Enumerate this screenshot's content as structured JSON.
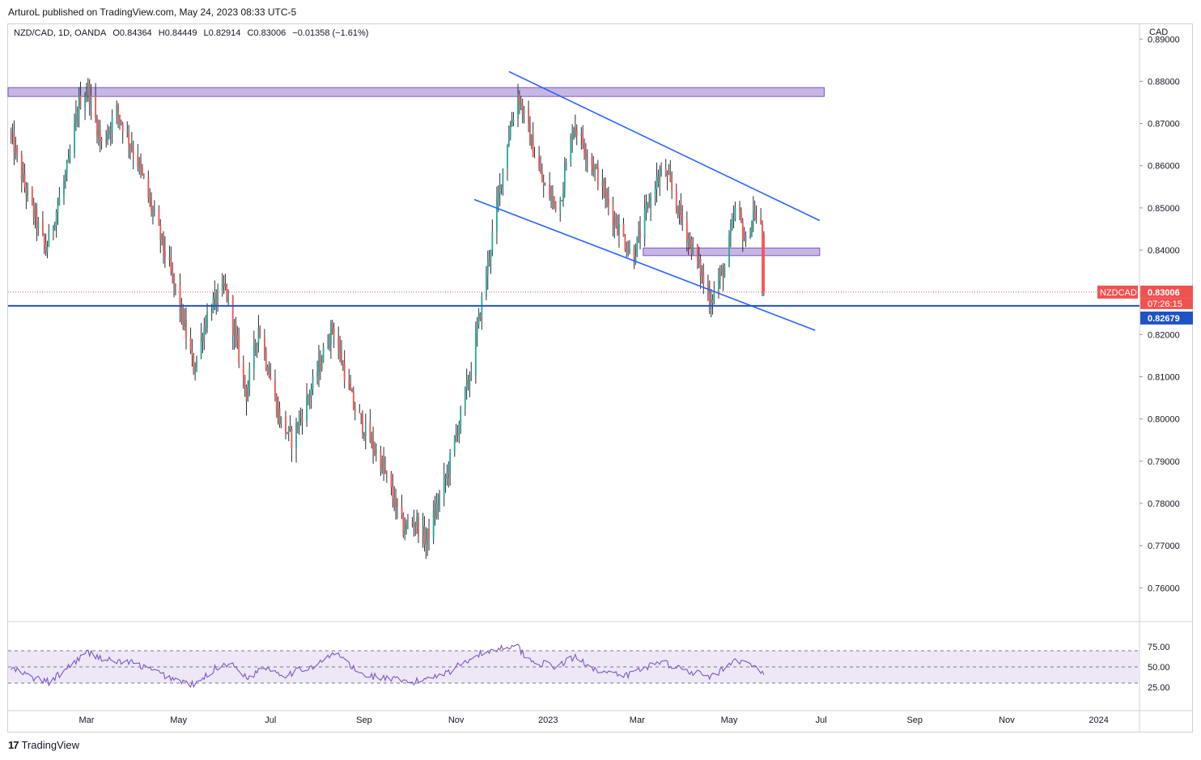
{
  "header": {
    "published": "ArturoL published on TradingView.com, May 24, 2023 08:33 UTC-5"
  },
  "legend": {
    "symbol": "NZD/CAD, 1D, OANDA",
    "open": "O0.84364",
    "high": "H0.84449",
    "low": "L0.82914",
    "close": "C0.83006",
    "change": "−0.01358 (−1.61%)"
  },
  "price_axis_unit": "CAD",
  "price_labels": {
    "symbol_tag": "NZDCAD",
    "last_price": "0.83006",
    "countdown": "07:26:15",
    "support_price": "0.82679"
  },
  "footer": {
    "brand": "TradingView",
    "logo_icon": "tradingview-logo-icon"
  },
  "colors": {
    "up": "#26a69a",
    "down": "#ef5350",
    "trendline": "#2962ff",
    "support_line": "#1e53c8",
    "zone_fill": "#b39ddb",
    "rsi_line": "#7e57c2",
    "rsi_band": "#ede7f6"
  },
  "chart_data": [
    {
      "type": "candlestick",
      "title": "NZD/CAD, 1D, OANDA",
      "ylabel": "CAD",
      "ylim": [
        0.752,
        0.8935
      ],
      "yticks": [
        "0.89000",
        "0.88000",
        "0.87000",
        "0.86000",
        "0.85000",
        "0.84000",
        "0.83000",
        "0.82000",
        "0.81000",
        "0.80000",
        "0.79000",
        "0.78000",
        "0.77000",
        "0.76000"
      ],
      "x_tick_labels": [
        "Mar",
        "May",
        "Jul",
        "Sep",
        "Nov",
        "2023",
        "Mar",
        "May",
        "Jul",
        "Sep",
        "Nov",
        "2024"
      ],
      "x_ticks": [
        "2022-03-01",
        "2022-05-01",
        "2022-07-01",
        "2022-09-01",
        "2022-11-01",
        "2023-01-01",
        "2023-03-01",
        "2023-05-01",
        "2023-07-01",
        "2023-09-01",
        "2023-11-01",
        "2024-01-01"
      ],
      "x_range": [
        "2022-01-08",
        "2024-01-28"
      ],
      "last_candle": {
        "date": "2023-05-24",
        "open": 0.84364,
        "high": 0.84449,
        "low": 0.82914,
        "close": 0.83006
      },
      "price_path": [
        [
          "2022-01-10",
          0.868
        ],
        [
          "2022-01-20",
          0.855
        ],
        [
          "2022-02-03",
          0.84
        ],
        [
          "2022-02-18",
          0.86
        ],
        [
          "2022-02-25",
          0.875
        ],
        [
          "2022-03-03",
          0.878
        ],
        [
          "2022-03-12",
          0.865
        ],
        [
          "2022-03-22",
          0.873
        ],
        [
          "2022-04-04",
          0.862
        ],
        [
          "2022-04-20",
          0.843
        ],
        [
          "2022-05-02",
          0.828
        ],
        [
          "2022-05-12",
          0.812
        ],
        [
          "2022-05-22",
          0.826
        ],
        [
          "2022-06-02",
          0.831
        ],
        [
          "2022-06-16",
          0.806
        ],
        [
          "2022-06-24",
          0.822
        ],
        [
          "2022-07-08",
          0.8
        ],
        [
          "2022-07-16",
          0.795
        ],
        [
          "2022-07-30",
          0.808
        ],
        [
          "2022-08-12",
          0.822
        ],
        [
          "2022-08-26",
          0.803
        ],
        [
          "2022-09-14",
          0.789
        ],
        [
          "2022-09-28",
          0.774
        ],
        [
          "2022-10-06",
          0.776
        ],
        [
          "2022-10-13",
          0.771
        ],
        [
          "2022-10-27",
          0.787
        ],
        [
          "2022-11-12",
          0.812
        ],
        [
          "2022-11-28",
          0.848
        ],
        [
          "2022-12-06",
          0.866
        ],
        [
          "2022-12-13",
          0.877
        ],
        [
          "2022-12-30",
          0.855
        ],
        [
          "2023-01-09",
          0.85
        ],
        [
          "2023-01-19",
          0.87
        ],
        [
          "2023-02-01",
          0.86
        ],
        [
          "2023-02-13",
          0.849
        ],
        [
          "2023-02-27",
          0.838
        ],
        [
          "2023-03-14",
          0.856
        ],
        [
          "2023-03-20",
          0.859
        ],
        [
          "2023-04-01",
          0.847
        ],
        [
          "2023-04-13",
          0.835
        ],
        [
          "2023-04-19",
          0.828
        ],
        [
          "2023-04-29",
          0.836
        ],
        [
          "2023-05-07",
          0.851
        ],
        [
          "2023-05-13",
          0.841
        ],
        [
          "2023-05-18",
          0.849
        ],
        [
          "2023-05-23",
          0.845
        ],
        [
          "2023-05-24",
          0.83
        ]
      ],
      "zones": [
        {
          "from": "2022-01-08",
          "to": "2023-07-03",
          "low": 0.8764,
          "high": 0.8785
        },
        {
          "from": "2023-03-05",
          "to": "2023-06-30",
          "low": 0.8387,
          "high": 0.8405
        }
      ],
      "trendlines": [
        {
          "from": [
            "2022-12-06",
            0.8823
          ],
          "to": [
            "2023-06-30",
            0.847
          ]
        },
        {
          "from": [
            "2022-11-13",
            0.852
          ],
          "to": [
            "2023-06-27",
            0.821
          ]
        }
      ],
      "horizontal_line": 0.82679
    },
    {
      "type": "line",
      "title": "RSI",
      "ylim": [
        0,
        100
      ],
      "yticks": [
        "75.00",
        "50.00",
        "25.00"
      ],
      "levels": [
        70,
        50,
        30
      ],
      "values_path": [
        [
          "2022-01-10",
          48
        ],
        [
          "2022-01-25",
          36
        ],
        [
          "2022-02-05",
          31
        ],
        [
          "2022-02-20",
          55
        ],
        [
          "2022-03-02",
          68
        ],
        [
          "2022-03-15",
          58
        ],
        [
          "2022-04-01",
          55
        ],
        [
          "2022-04-25",
          37
        ],
        [
          "2022-05-12",
          27
        ],
        [
          "2022-05-25",
          48
        ],
        [
          "2022-06-03",
          55
        ],
        [
          "2022-06-18",
          35
        ],
        [
          "2022-06-25",
          52
        ],
        [
          "2022-07-10",
          40
        ],
        [
          "2022-08-01",
          53
        ],
        [
          "2022-08-14",
          68
        ],
        [
          "2022-08-28",
          42
        ],
        [
          "2022-09-15",
          36
        ],
        [
          "2022-10-03",
          30
        ],
        [
          "2022-10-15",
          38
        ],
        [
          "2022-10-28",
          45
        ],
        [
          "2022-11-12",
          63
        ],
        [
          "2022-11-28",
          72
        ],
        [
          "2022-12-10",
          78
        ],
        [
          "2022-12-20",
          58
        ],
        [
          "2023-01-06",
          50
        ],
        [
          "2023-01-19",
          62
        ],
        [
          "2023-02-05",
          44
        ],
        [
          "2023-02-20",
          38
        ],
        [
          "2023-03-16",
          57
        ],
        [
          "2023-04-01",
          47
        ],
        [
          "2023-04-19",
          37
        ],
        [
          "2023-05-07",
          58
        ],
        [
          "2023-05-16",
          50
        ],
        [
          "2023-05-20",
          55
        ],
        [
          "2023-05-24",
          38
        ]
      ]
    }
  ]
}
